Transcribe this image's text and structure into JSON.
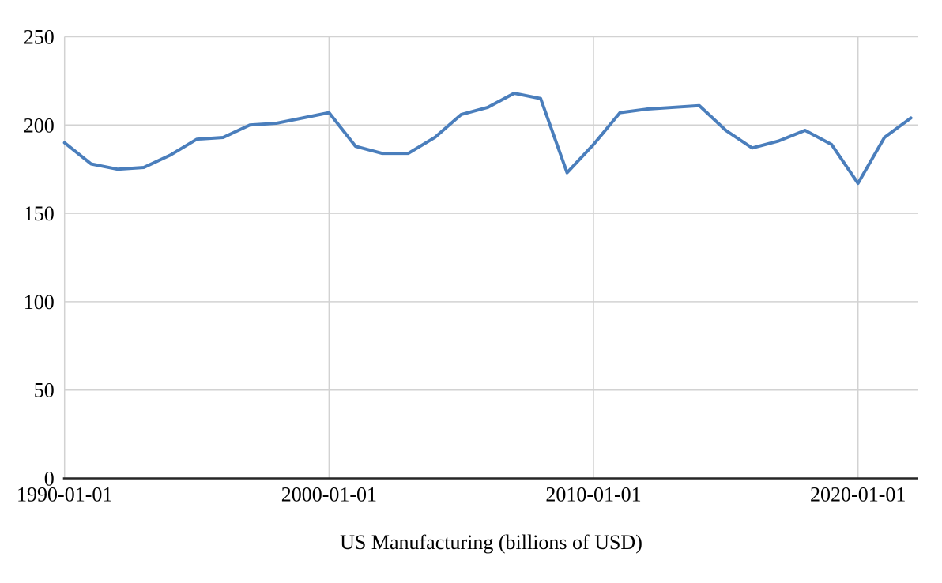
{
  "chart_data": {
    "type": "line",
    "title": "US Manufacturing (billions of USD)",
    "xlabel": "",
    "ylabel": "",
    "x": [
      1990,
      1991,
      1992,
      1993,
      1994,
      1995,
      1996,
      1997,
      1998,
      1999,
      2000,
      2001,
      2002,
      2003,
      2004,
      2005,
      2006,
      2007,
      2008,
      2009,
      2010,
      2011,
      2012,
      2013,
      2014,
      2015,
      2016,
      2017,
      2018,
      2019,
      2020,
      2021,
      2022
    ],
    "series": [
      {
        "name": "US Manufacturing",
        "values": [
          190,
          178,
          175,
          176,
          183,
          192,
          193,
          200,
          201,
          204,
          207,
          188,
          184,
          184,
          193,
          206,
          210,
          218,
          215,
          173,
          189,
          207,
          209,
          210,
          211,
          197,
          187,
          191,
          197,
          189,
          167,
          193,
          204
        ]
      }
    ],
    "xlim": [
      1990,
      2022.25
    ],
    "ylim": [
      0,
      250
    ],
    "y_ticks": [
      0,
      50,
      100,
      150,
      200,
      250
    ],
    "x_tick_years": [
      1990,
      2000,
      2010,
      2020
    ],
    "x_tick_labels": [
      "1990-01-01",
      "2000-01-01",
      "2010-01-01",
      "2020-01-01"
    ],
    "grid": true,
    "legend": "none",
    "line_color": "#4a7ebc",
    "grid_color": "#d2d2d2",
    "axis_color": "#262626",
    "text_color": "#000000",
    "background_color": "#ffffff"
  }
}
